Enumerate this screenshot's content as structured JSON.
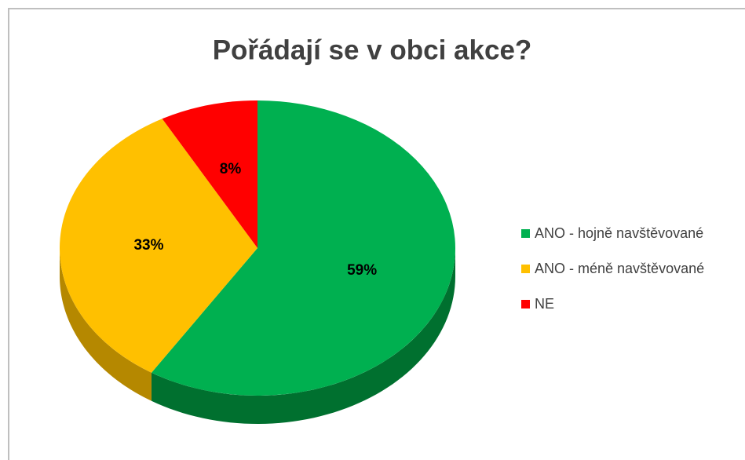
{
  "chart_data": {
    "type": "pie",
    "title": "Pořádají se v obci akce?",
    "categories": [
      "ANO - hojně navštěvované",
      "ANO - méně navštěvované",
      "NE"
    ],
    "values": [
      59,
      33,
      8
    ],
    "value_labels": [
      "59%",
      "33%",
      "8%"
    ],
    "colors": [
      "#00b050",
      "#ffc000",
      "#ff0000"
    ],
    "side_colors": [
      "#00702f",
      "#b58800",
      "#a00000"
    ],
    "legend": "right"
  }
}
